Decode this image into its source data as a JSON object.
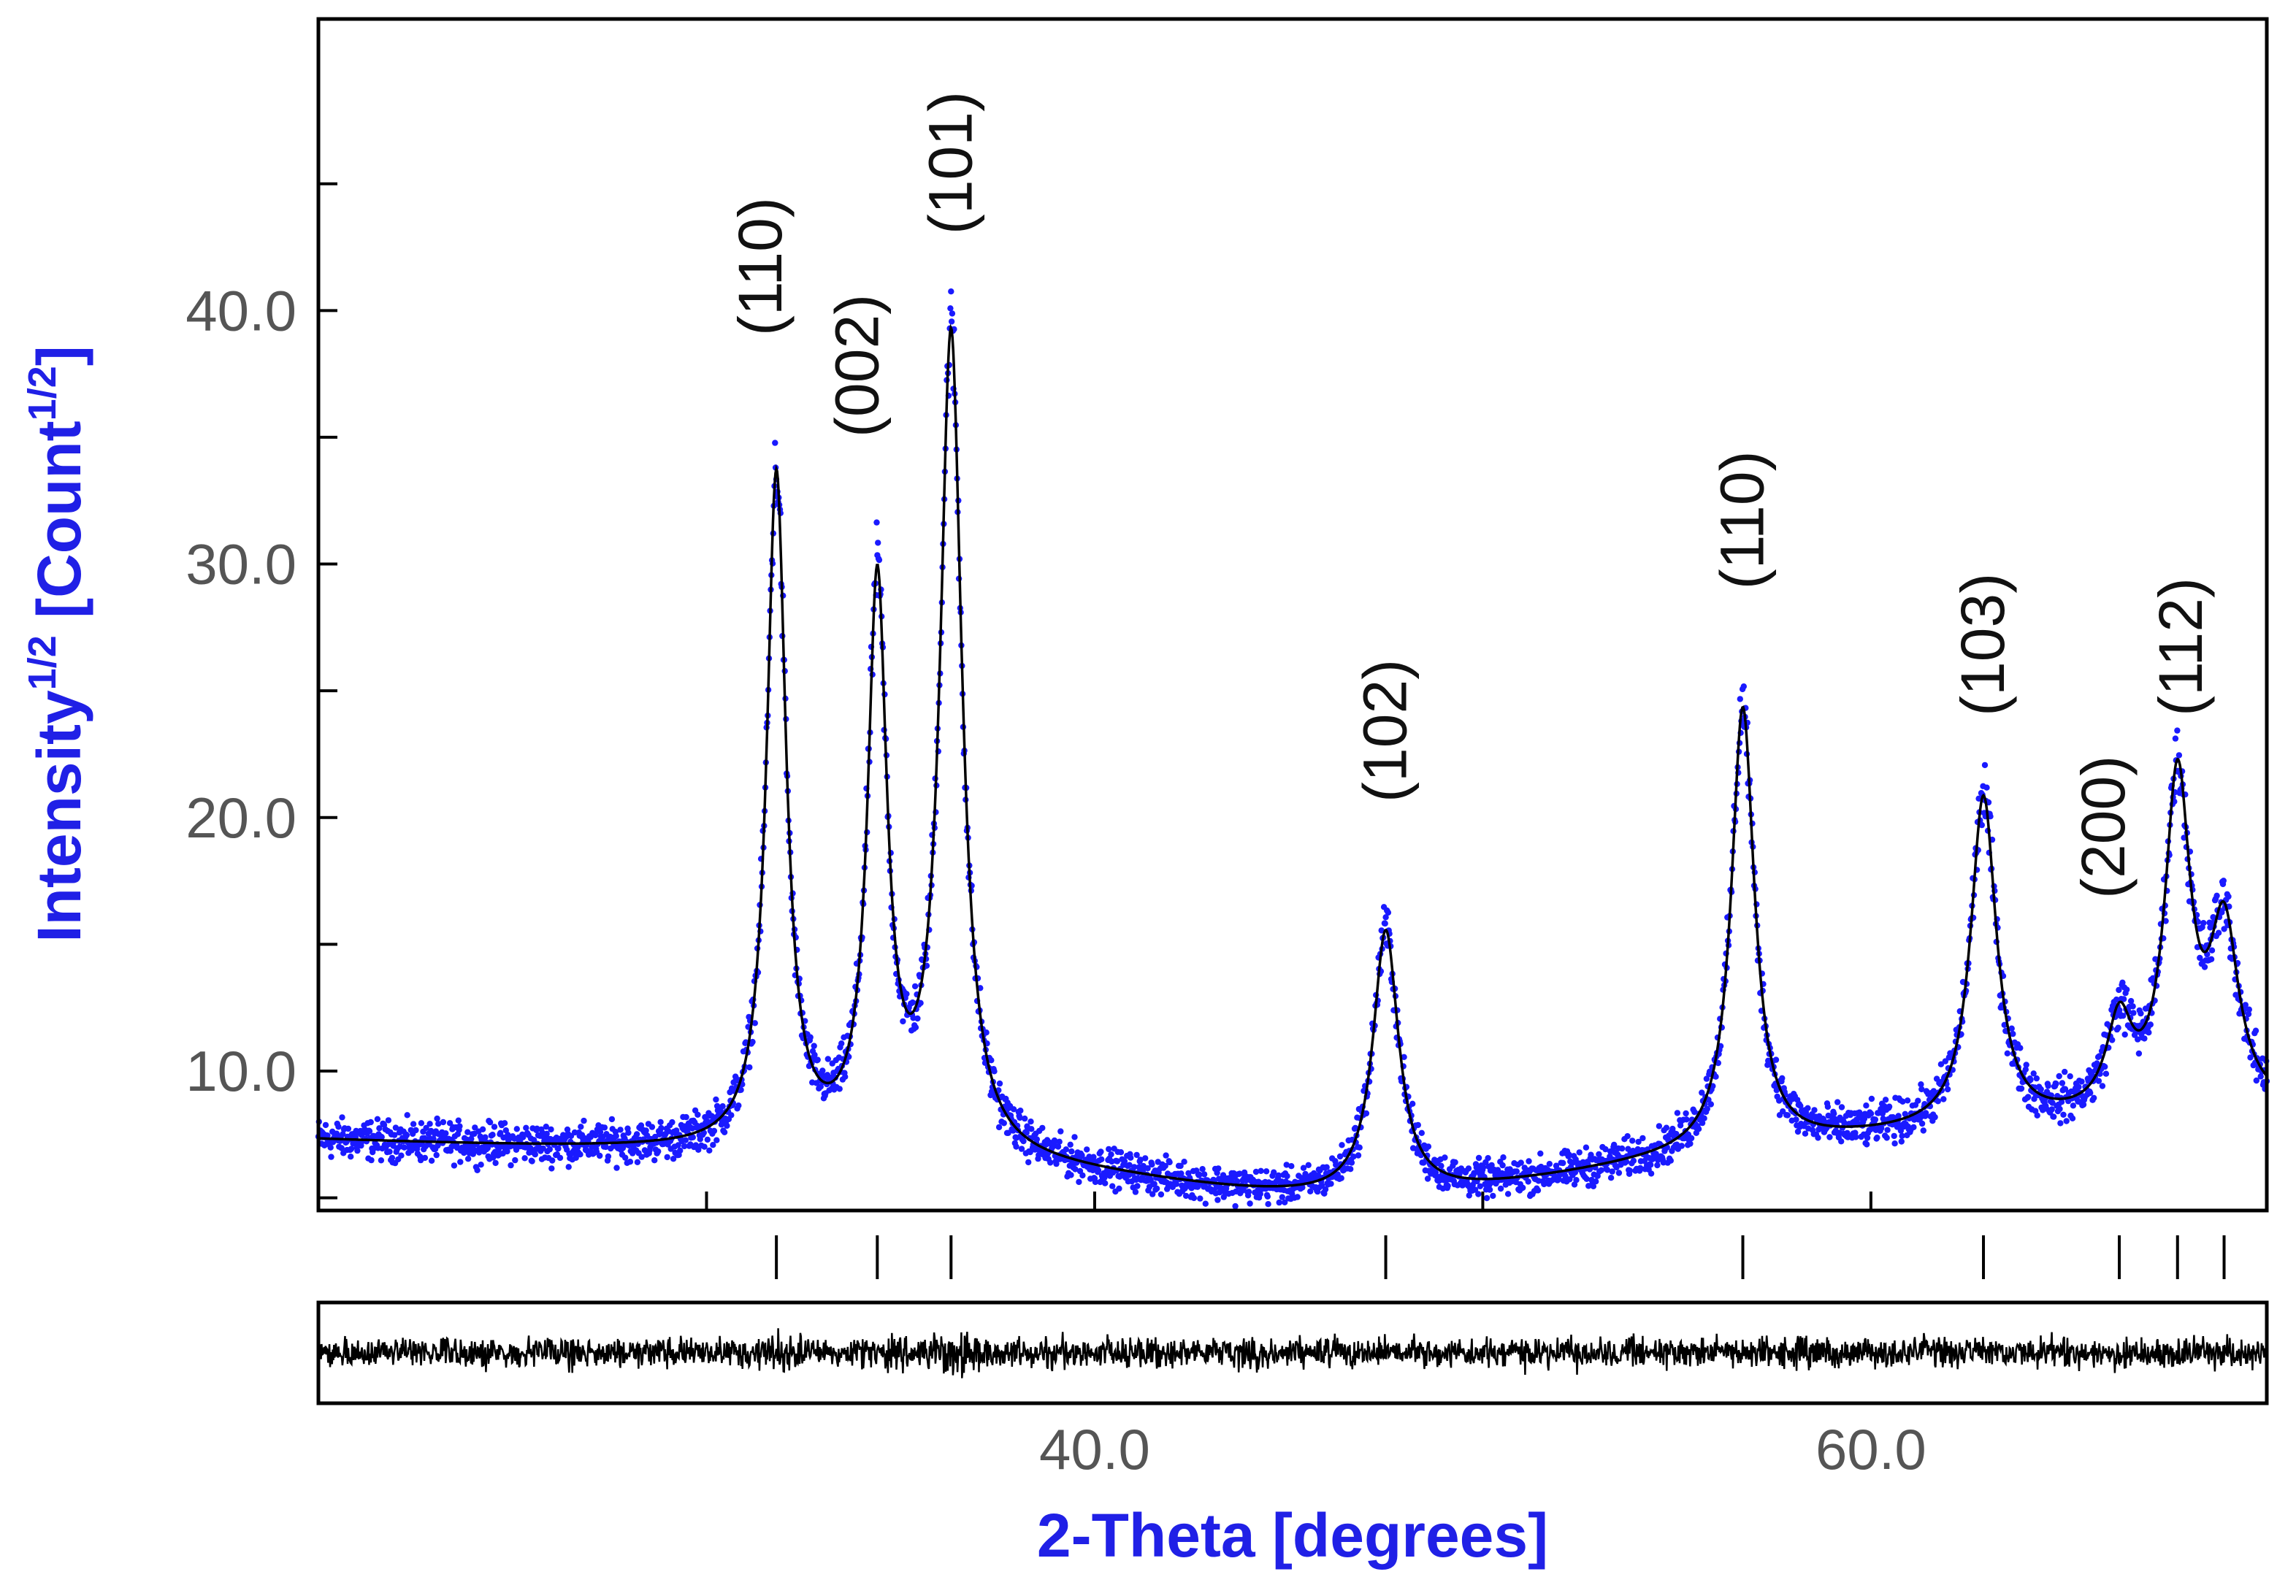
{
  "chart_data": {
    "type": "scatter",
    "title": "",
    "xlabel": "2-Theta [degrees]",
    "ylabel": {
      "base": "Intensity",
      "sup": "1/2",
      "unit_open": " [Count",
      "unit_sup": "1/2",
      "unit_close": "]"
    },
    "xlim": [
      20.0,
      70.2
    ],
    "ylim": [
      4.5,
      51.5
    ],
    "x_ticks": [
      30.0,
      40.0,
      50.0,
      60.0
    ],
    "x_tick_labels": [
      {
        "value": 40.0,
        "label": "40.0"
      },
      {
        "value": 60.0,
        "label": "60.0"
      }
    ],
    "y_ticks": [
      5.0,
      10.0,
      15.0,
      20.0,
      25.0,
      30.0,
      35.0,
      40.0,
      45.0
    ],
    "y_tick_labels": [
      {
        "value": 10.0,
        "label": "10.0"
      },
      {
        "value": 20.0,
        "label": "20.0"
      },
      {
        "value": 30.0,
        "label": "30.0"
      },
      {
        "value": 40.0,
        "label": "40.0"
      }
    ],
    "grid": false,
    "background": {
      "a": 7.3,
      "b": -0.006,
      "c": 0.0016,
      "x0": 20.0,
      "dip_center": 47.0,
      "dip_depth": 1.8,
      "dip_width": 8.0
    },
    "peaks": [
      {
        "label": "(110)",
        "x": 31.8,
        "height": 26.5,
        "width": 0.3
      },
      {
        "label": "(002)",
        "x": 34.4,
        "height": 22.0,
        "width": 0.3
      },
      {
        "label": "(101)",
        "x": 36.3,
        "height": 32.2,
        "width": 0.34
      },
      {
        "label": "(102)",
        "x": 47.5,
        "height": 10.4,
        "width": 0.4
      },
      {
        "label": "(110)",
        "x": 56.7,
        "height": 17.4,
        "width": 0.36
      },
      {
        "label": "(103)",
        "x": 62.9,
        "height": 13.0,
        "width": 0.4
      },
      {
        "label": "(200)",
        "x": 66.4,
        "height": 3.5,
        "width": 0.4
      },
      {
        "label": "(112)",
        "x": 67.9,
        "height": 13.0,
        "width": 0.4
      },
      {
        "label": "",
        "x": 69.1,
        "height": 7.0,
        "width": 0.45
      }
    ],
    "peak_labels": [
      {
        "text": "(110)",
        "x": 31.4,
        "y": 39.0
      },
      {
        "text": "(002)",
        "x": 33.9,
        "y": 35.0
      },
      {
        "text": "(101)",
        "x": 36.3,
        "y": 43.0
      },
      {
        "text": "(102)",
        "x": 47.5,
        "y": 20.6
      },
      {
        "text": "(110)",
        "x": 56.7,
        "y": 29.0
      },
      {
        "text": "(103)",
        "x": 62.9,
        "y": 24.0
      },
      {
        "text": "(200)",
        "x": 66.0,
        "y": 16.8
      },
      {
        "text": "(112)",
        "x": 68.0,
        "y": 24.0
      }
    ],
    "reflection_markers": [
      31.8,
      34.4,
      36.3,
      47.5,
      56.7,
      62.9,
      66.4,
      67.9,
      69.1
    ],
    "series": [
      {
        "role": "observed",
        "marker": "dot",
        "color": "#1a1aff"
      },
      {
        "role": "calculated",
        "marker": "line",
        "color": "#000000"
      },
      {
        "role": "difference",
        "marker": "line",
        "color": "#000000"
      }
    ],
    "colors": {
      "observed": "#1a1aff",
      "calculated": "#000000",
      "axis_label": "#2020e6",
      "tick_label": "#555555"
    }
  }
}
